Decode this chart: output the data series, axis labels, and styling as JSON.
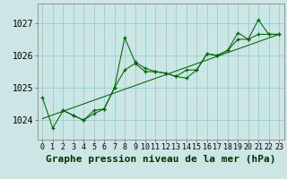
{
  "title": "Graphe pression niveau de la mer (hPa)",
  "background_color": "#cce5e5",
  "grid_color": "#99cccc",
  "line_color": "#006600",
  "xlim": [
    -0.5,
    23.5
  ],
  "ylim": [
    1023.4,
    1027.6
  ],
  "yticks": [
    1024,
    1025,
    1026,
    1027
  ],
  "xticks": [
    0,
    1,
    2,
    3,
    4,
    5,
    6,
    7,
    8,
    9,
    10,
    11,
    12,
    13,
    14,
    15,
    16,
    17,
    18,
    19,
    20,
    21,
    22,
    23
  ],
  "series": [
    {
      "x": [
        0,
        1,
        2,
        3,
        4,
        5,
        6,
        7,
        8,
        9,
        10,
        11,
        12,
        13,
        14,
        15,
        16,
        17,
        18,
        19,
        20,
        21,
        22,
        23
      ],
      "y": [
        1024.7,
        1023.75,
        1024.3,
        1024.15,
        1024.0,
        1024.2,
        1024.35,
        1025.0,
        1026.55,
        1025.8,
        1025.6,
        1025.5,
        1025.45,
        1025.35,
        1025.55,
        1025.55,
        1026.05,
        1026.0,
        1026.15,
        1026.5,
        1026.5,
        1027.1,
        1026.65,
        1026.65
      ]
    },
    {
      "x": [
        2,
        3,
        4,
        5,
        6,
        7,
        8,
        9,
        10,
        11,
        12,
        13,
        14,
        15,
        16,
        17,
        18,
        19,
        20,
        21,
        22,
        23
      ],
      "y": [
        1024.3,
        1024.15,
        1024.0,
        1024.3,
        1024.35,
        1025.0,
        1025.55,
        1025.75,
        1025.5,
        1025.5,
        1025.45,
        1025.35,
        1025.3,
        1025.55,
        1026.05,
        1026.0,
        1026.15,
        1026.7,
        1026.5,
        1026.65,
        1026.65,
        1026.65
      ]
    },
    {
      "x": [
        0,
        23
      ],
      "y": [
        1024.05,
        1026.65
      ]
    }
  ],
  "title_fontsize": 8,
  "tick_fontsize": 6,
  "ylabel_fontsize": 7
}
